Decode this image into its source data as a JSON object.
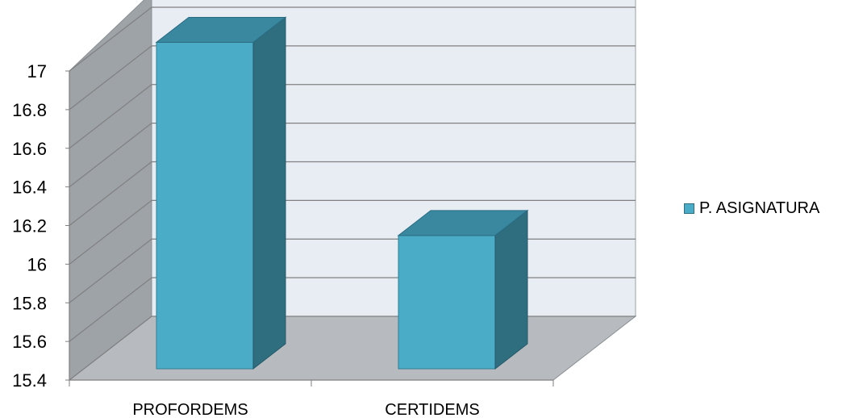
{
  "chart_data": {
    "type": "bar",
    "title": "",
    "xlabel": "",
    "ylabel": "",
    "categories": [
      "PROFORDEMS",
      "CERTIDEMS"
    ],
    "series": [
      {
        "name": "P. ASIGNATURA",
        "values": [
          17.09,
          16.09
        ]
      }
    ],
    "ylim": [
      15.4,
      17
    ],
    "yticks": [
      "15.4",
      "15.6",
      "15.8",
      "16",
      "16.2",
      "16.4",
      "16.6",
      "16.8",
      "17"
    ],
    "grid": true,
    "legend_position": "right",
    "colors": {
      "bar_front": "#4aacc6",
      "bar_side": "#2f6e7e",
      "bar_top": "#3a87a0",
      "wall_back": "#e8edf4",
      "wall_side": "#9ea3a8",
      "floor": "#b7bbbf",
      "gridline": "#808080"
    }
  }
}
